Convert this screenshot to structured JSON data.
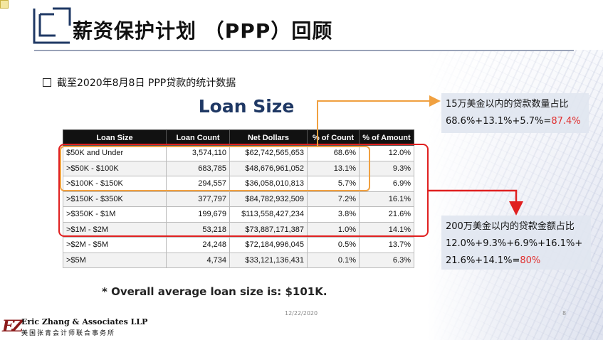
{
  "title": "薪资保护计划 （PPP）回顾",
  "bullet": "截至2020年8月8日 PPP贷款的统计数据",
  "table_title": "Loan Size",
  "table": {
    "headers": [
      "Loan Size",
      "Loan Count",
      "Net Dollars",
      "% of Count",
      "% of Amount"
    ],
    "rows": [
      [
        "$50K and Under",
        "3,574,110",
        "$62,742,565,653",
        "68.6%",
        "12.0%"
      ],
      [
        ">$50K - $100K",
        "683,785",
        "$48,676,961,052",
        "13.1%",
        "9.3%"
      ],
      [
        ">$100K - $150K",
        "294,557",
        "$36,058,010,813",
        "5.7%",
        "6.9%"
      ],
      [
        ">$150K - $350K",
        "377,797",
        "$84,782,932,509",
        "7.2%",
        "16.1%"
      ],
      [
        ">$350K - $1M",
        "199,679",
        "$113,558,427,234",
        "3.8%",
        "21.6%"
      ],
      [
        ">$1M - $2M",
        "53,218",
        "$73,887,171,387",
        "1.0%",
        "14.1%"
      ],
      [
        ">$2M - $5M",
        "24,248",
        "$72,184,996,045",
        "0.5%",
        "13.7%"
      ],
      [
        ">$5M",
        "4,734",
        "$33,121,136,431",
        "0.1%",
        "6.3%"
      ]
    ]
  },
  "average_note": "* Overall average loan size is: $101K.",
  "callout_count": {
    "line1": "15万美金以内的贷款数量占比",
    "line2": "68.6%+13.1%+5.7%=",
    "result": "87.4%"
  },
  "callout_amount": {
    "line1": "200万美金以内的贷款金额占比",
    "line2": "12.0%+9.3%+6.9%+16.1%+",
    "line3": "21.6%+14.1%=",
    "result": "80%"
  },
  "footer": {
    "date": "12/22/2020",
    "page": "8",
    "logo_mark": "EZ",
    "firm_name": "Eric Zhang & Associates LLP",
    "firm_name_cn": "美国张青会计师联合事务所"
  },
  "colors": {
    "title_icon": "#1f3864",
    "orange_highlight": "#f0a040",
    "red_highlight": "#e02020",
    "callout_bg": "#e1e6f0",
    "result_text": "#e03030"
  }
}
